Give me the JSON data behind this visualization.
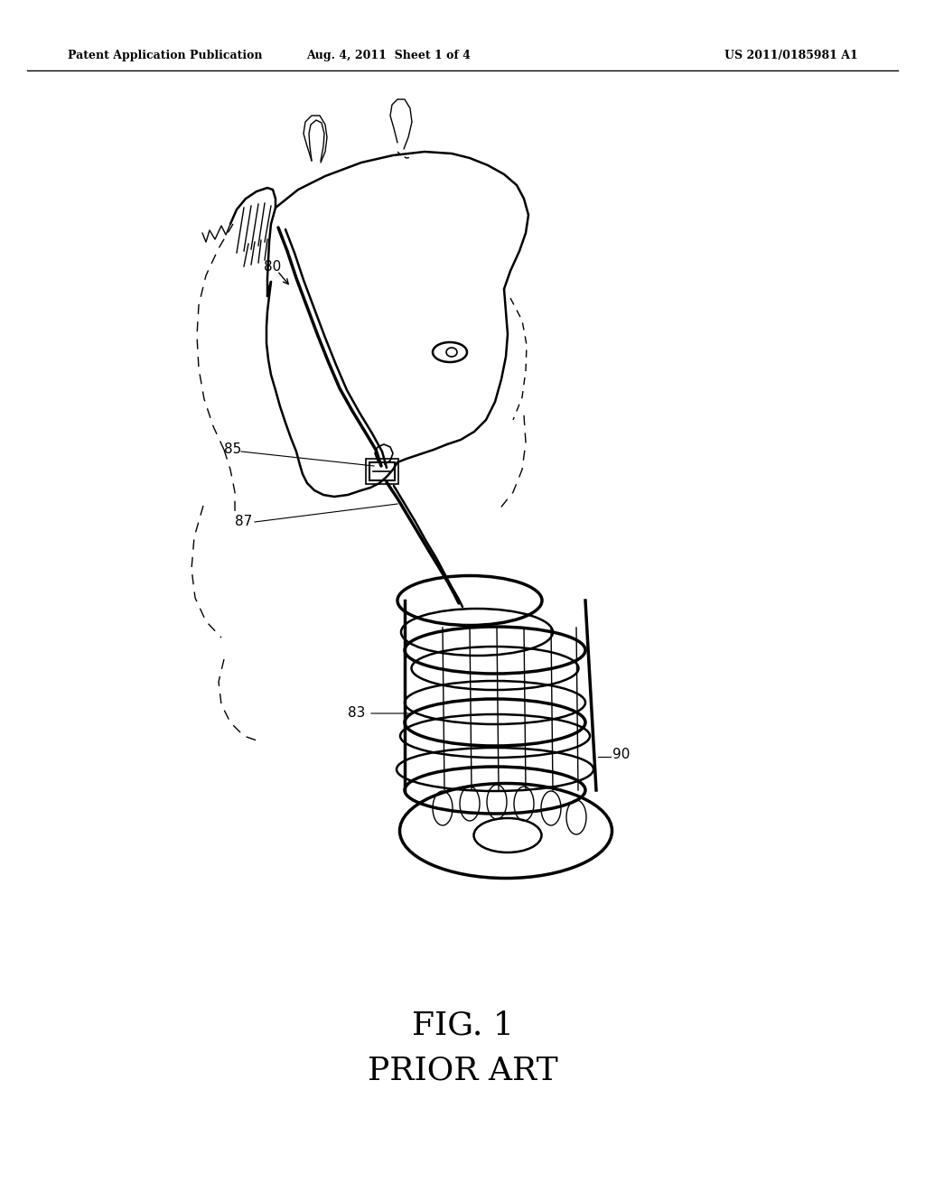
{
  "background_color": "#ffffff",
  "header_left": "Patent Application Publication",
  "header_mid": "Aug. 4, 2011  Sheet 1 of 4",
  "header_right": "US 2011/0185981 A1",
  "fig_label": "FIG. 1",
  "fig_sublabel": "PRIOR ART",
  "text_color": "#000000",
  "line_color": "#000000",
  "lw_main": 1.8,
  "lw_thin": 1.0,
  "lw_thick": 2.5,
  "label_fs": 11,
  "fig_label_fs": 26
}
